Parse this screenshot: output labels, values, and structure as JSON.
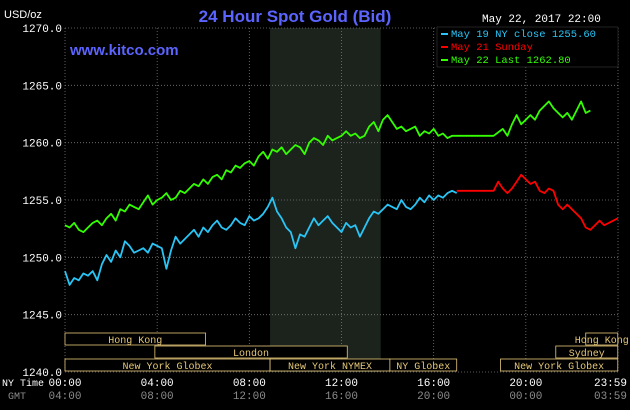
{
  "header": {
    "title": "24 Hour Spot Gold (Bid)",
    "date_time": "May 22, 2017 22:00",
    "units": "USD/oz",
    "website": "www.kitco.com"
  },
  "legend": {
    "items": [
      {
        "label": "May 19 NY close 1255.60",
        "color": "#29c5f6"
      },
      {
        "label": "May 21 Sunday",
        "color": "#ff0000"
      },
      {
        "label": "May 22 Last 1262.80",
        "color": "#33ff00"
      }
    ]
  },
  "footer": {
    "ny_time_label": "NY Time",
    "gmt_label": "GMT"
  },
  "colors": {
    "background": "#000000",
    "plot_background": "#000000",
    "shaded_session": "#1c231c",
    "grid": "#787878",
    "axis_text": "#ffffff",
    "title_color": "#5c64ff",
    "website_color": "#5c64ff",
    "session_box_border": "#e6c878",
    "session_box_text": "#e6c878",
    "gmt_text": "#8c8c8c",
    "blue_series": "#29c5f6",
    "red_series": "#ff0000",
    "green_series": "#33ff00"
  },
  "chart_data": {
    "type": "line",
    "title": "24 Hour Spot Gold (Bid)",
    "ylabel": "USD/oz",
    "ylim": [
      1240.0,
      1270.0
    ],
    "yticks": [
      "1240.0",
      "1245.0",
      "1250.0",
      "1255.0",
      "1260.0",
      "1265.0",
      "1270.0"
    ],
    "xlim": [
      0,
      24
    ],
    "x_ticks_ny": [
      "00:00",
      "04:00",
      "08:00",
      "12:00",
      "16:00",
      "20:00",
      "23:59"
    ],
    "x_ticks_gmt": [
      "04:00",
      "08:00",
      "12:00",
      "16:00",
      "20:00",
      "00:00",
      "03:59"
    ],
    "grid": true,
    "shaded_session": {
      "x_start": 8.9,
      "x_end": 13.7
    },
    "sessions": [
      {
        "label": "Hong Kong",
        "row": 0,
        "x_start": 0.0,
        "x_end": 6.1
      },
      {
        "label": "Hong Kong",
        "row": 0,
        "x_start": 22.6,
        "x_end": 23.99
      },
      {
        "label": "London",
        "row": 1,
        "x_start": 3.9,
        "x_end": 12.25
      },
      {
        "label": "Sydney",
        "row": 1,
        "x_start": 21.3,
        "x_end": 23.99
      },
      {
        "label": "New York Globex",
        "row": 2,
        "x_start": 0.0,
        "x_end": 8.9
      },
      {
        "label": "New York NYMEX",
        "row": 2,
        "x_start": 8.9,
        "x_end": 14.1
      },
      {
        "label": "NY Globex",
        "row": 2,
        "x_start": 14.1,
        "x_end": 17.0
      },
      {
        "label": "New York Globex",
        "row": 2,
        "x_start": 18.9,
        "x_end": 23.99
      }
    ],
    "series": [
      {
        "name": "May 19 NY close 1255.60",
        "color": "#29c5f6",
        "x": [
          0.0,
          0.2,
          0.4,
          0.6,
          0.8,
          1.0,
          1.2,
          1.4,
          1.6,
          1.8,
          2.0,
          2.2,
          2.4,
          2.6,
          2.8,
          3.0,
          3.2,
          3.4,
          3.6,
          3.8,
          4.0,
          4.2,
          4.4,
          4.6,
          4.8,
          5.0,
          5.2,
          5.4,
          5.6,
          5.8,
          6.0,
          6.2,
          6.4,
          6.6,
          6.8,
          7.0,
          7.2,
          7.4,
          7.6,
          7.8,
          8.0,
          8.2,
          8.4,
          8.6,
          8.8,
          9.0,
          9.2,
          9.4,
          9.6,
          9.8,
          10.0,
          10.2,
          10.4,
          10.6,
          10.8,
          11.0,
          11.2,
          11.4,
          11.6,
          11.8,
          12.0,
          12.2,
          12.4,
          12.6,
          12.8,
          13.0,
          13.2,
          13.4,
          13.6,
          13.8,
          14.0,
          14.2,
          14.4,
          14.6,
          14.8,
          15.0,
          15.2,
          15.4,
          15.6,
          15.8,
          16.0,
          16.2,
          16.4,
          16.6,
          16.8,
          17.0
        ],
        "y": [
          1248.8,
          1247.6,
          1248.2,
          1248.0,
          1248.6,
          1248.4,
          1248.8,
          1248.0,
          1249.4,
          1250.2,
          1249.6,
          1250.6,
          1250.0,
          1251.4,
          1251.0,
          1250.4,
          1250.6,
          1250.8,
          1250.4,
          1251.2,
          1251.0,
          1250.8,
          1249.0,
          1250.6,
          1251.8,
          1251.2,
          1251.6,
          1252.0,
          1252.4,
          1251.8,
          1252.6,
          1252.2,
          1252.8,
          1253.2,
          1252.6,
          1252.4,
          1252.8,
          1253.4,
          1253.0,
          1252.8,
          1253.6,
          1253.2,
          1253.4,
          1253.8,
          1254.4,
          1255.2,
          1254.0,
          1253.4,
          1252.6,
          1252.2,
          1250.8,
          1252.0,
          1251.8,
          1252.6,
          1253.4,
          1252.8,
          1253.2,
          1253.6,
          1253.0,
          1252.6,
          1252.2,
          1253.0,
          1252.6,
          1252.8,
          1251.8,
          1252.6,
          1253.4,
          1254.0,
          1253.8,
          1254.2,
          1254.6,
          1254.4,
          1254.2,
          1255.0,
          1254.4,
          1254.2,
          1254.6,
          1255.2,
          1254.8,
          1255.4,
          1255.0,
          1255.4,
          1255.2,
          1255.6,
          1255.8,
          1255.6
        ]
      },
      {
        "name": "May 21 Sunday",
        "color": "#ff0000",
        "x": [
          17.0,
          17.4,
          17.8,
          18.2,
          18.6,
          18.8,
          19.0,
          19.2,
          19.4,
          19.6,
          19.8,
          20.0,
          20.2,
          20.4,
          20.6,
          20.8,
          21.0,
          21.2,
          21.4,
          21.6,
          21.8,
          22.0,
          22.2,
          22.4,
          22.6,
          22.8,
          23.0,
          23.2,
          23.4,
          23.6,
          23.8,
          23.99
        ],
        "y": [
          1255.8,
          1255.8,
          1255.8,
          1255.8,
          1255.8,
          1256.6,
          1256.0,
          1255.6,
          1256.0,
          1256.6,
          1257.2,
          1256.8,
          1256.4,
          1256.6,
          1255.8,
          1255.6,
          1256.0,
          1255.8,
          1254.6,
          1254.2,
          1254.6,
          1254.2,
          1253.8,
          1253.4,
          1252.6,
          1252.4,
          1252.8,
          1253.2,
          1252.8,
          1253.0,
          1253.2,
          1253.4
        ]
      },
      {
        "name": "May 22 Last 1262.80",
        "color": "#33ff00",
        "x": [
          0.0,
          0.2,
          0.4,
          0.6,
          0.8,
          1.0,
          1.2,
          1.4,
          1.6,
          1.8,
          2.0,
          2.2,
          2.4,
          2.6,
          2.8,
          3.0,
          3.2,
          3.4,
          3.6,
          3.8,
          4.0,
          4.2,
          4.4,
          4.6,
          4.8,
          5.0,
          5.2,
          5.4,
          5.6,
          5.8,
          6.0,
          6.2,
          6.4,
          6.6,
          6.8,
          7.0,
          7.2,
          7.4,
          7.6,
          7.8,
          8.0,
          8.2,
          8.4,
          8.6,
          8.8,
          9.0,
          9.2,
          9.4,
          9.6,
          9.8,
          10.0,
          10.2,
          10.4,
          10.6,
          10.8,
          11.0,
          11.2,
          11.4,
          11.6,
          11.8,
          12.0,
          12.2,
          12.4,
          12.6,
          12.8,
          13.0,
          13.2,
          13.4,
          13.6,
          13.8,
          14.0,
          14.2,
          14.4,
          14.6,
          14.8,
          15.0,
          15.2,
          15.4,
          15.6,
          15.8,
          16.0,
          16.2,
          16.4,
          16.6,
          16.8,
          17.0,
          17.4,
          17.8,
          18.2,
          18.6,
          19.0,
          19.2,
          19.4,
          19.6,
          19.8,
          20.0,
          20.2,
          20.4,
          20.6,
          20.8,
          21.0,
          21.2,
          21.4,
          21.6,
          21.8,
          22.0,
          22.2,
          22.4,
          22.6,
          22.8
        ],
        "y": [
          1252.8,
          1252.6,
          1253.0,
          1252.4,
          1252.2,
          1252.6,
          1253.0,
          1253.2,
          1252.8,
          1253.4,
          1253.8,
          1253.2,
          1254.2,
          1254.0,
          1254.6,
          1254.4,
          1254.2,
          1254.8,
          1255.4,
          1254.6,
          1255.0,
          1255.2,
          1255.6,
          1255.0,
          1255.2,
          1255.8,
          1255.6,
          1256.0,
          1256.4,
          1256.2,
          1256.8,
          1256.4,
          1257.0,
          1257.2,
          1256.8,
          1257.6,
          1257.4,
          1258.0,
          1257.8,
          1258.2,
          1258.4,
          1258.0,
          1258.8,
          1259.2,
          1258.6,
          1259.4,
          1259.2,
          1259.6,
          1259.0,
          1259.4,
          1259.8,
          1259.6,
          1259.0,
          1260.0,
          1260.4,
          1260.2,
          1259.8,
          1260.6,
          1260.2,
          1260.4,
          1260.6,
          1261.0,
          1260.6,
          1260.8,
          1260.4,
          1260.6,
          1261.4,
          1261.8,
          1261.0,
          1262.0,
          1262.4,
          1261.8,
          1261.2,
          1261.4,
          1261.0,
          1261.2,
          1261.4,
          1260.6,
          1261.0,
          1260.8,
          1261.2,
          1260.6,
          1260.8,
          1260.4,
          1260.6,
          1260.6,
          1260.6,
          1260.6,
          1260.6,
          1260.6,
          1261.2,
          1260.6,
          1261.6,
          1262.4,
          1261.6,
          1262.0,
          1262.4,
          1262.0,
          1262.8,
          1263.2,
          1263.6,
          1263.0,
          1262.6,
          1262.2,
          1262.6,
          1262.0,
          1262.8,
          1263.6,
          1262.6,
          1262.8
        ]
      }
    ]
  }
}
